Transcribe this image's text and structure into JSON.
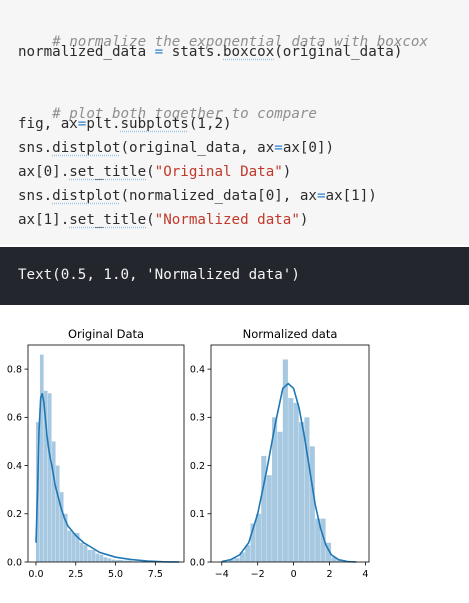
{
  "code": {
    "line1": "# normalize the exponential data with boxcox",
    "line2": {
      "a": "normalized_data ",
      "eq": "=",
      "b": " stats.",
      "c": "boxcox",
      "d": "(original_data)"
    },
    "line4": "# plot both together to compare",
    "line5": {
      "a": "fig, ax",
      "eq": "=",
      "b": "plt.",
      "c": "subplots",
      "d": "(1,2)"
    },
    "line6": {
      "a": "sns.",
      "b": "distplot",
      "c": "(original_data, ax",
      "eq": "=",
      "d": "ax[0])"
    },
    "line7": {
      "a": "ax[0].",
      "b": "set_title",
      "c": "(",
      "s": "\"Original Data\"",
      "d": ")"
    },
    "line8": {
      "a": "sns.",
      "b": "distplot",
      "c": "(normalized_data[0], ax",
      "eq": "=",
      "d": "ax[1])"
    },
    "line9": {
      "a": "ax[1].",
      "b": "set_title",
      "c": "(",
      "s": "\"Normalized data\"",
      "d": ")"
    }
  },
  "output": {
    "text": "Text(0.5, 1.0, 'Normalized data')"
  },
  "colors": {
    "hist": "#a6c8e0",
    "kde": "#1f77b4",
    "code_bg": "#f6f6f6",
    "output_bg": "#23262d"
  },
  "chart_data": [
    {
      "type": "bar",
      "title": "Original Data",
      "xlim": [
        -0.5,
        9.3
      ],
      "ylim": [
        0,
        0.9
      ],
      "xticks": [
        "0.0",
        "2.5",
        "5.0",
        "7.5"
      ],
      "xtick_values": [
        0,
        2.5,
        5,
        7.5
      ],
      "yticks": [
        "0.0",
        "0.2",
        "0.4",
        "0.6",
        "0.8"
      ],
      "ytick_values": [
        0,
        0.2,
        0.4,
        0.6,
        0.8
      ],
      "bins": [
        {
          "x0": 0.0,
          "x1": 0.25,
          "y": 0.58
        },
        {
          "x0": 0.25,
          "x1": 0.5,
          "y": 0.86
        },
        {
          "x0": 0.5,
          "x1": 0.75,
          "y": 0.71
        },
        {
          "x0": 0.75,
          "x1": 1.0,
          "y": 0.7
        },
        {
          "x0": 1.0,
          "x1": 1.25,
          "y": 0.5
        },
        {
          "x0": 1.25,
          "x1": 1.5,
          "y": 0.4
        },
        {
          "x0": 1.5,
          "x1": 1.75,
          "y": 0.29
        },
        {
          "x0": 1.75,
          "x1": 2.0,
          "y": 0.2
        },
        {
          "x0": 2.0,
          "x1": 2.25,
          "y": 0.13
        },
        {
          "x0": 2.25,
          "x1": 2.5,
          "y": 0.12
        },
        {
          "x0": 2.5,
          "x1": 2.75,
          "y": 0.12
        },
        {
          "x0": 2.75,
          "x1": 3.0,
          "y": 0.08
        },
        {
          "x0": 3.0,
          "x1": 3.25,
          "y": 0.07
        },
        {
          "x0": 3.25,
          "x1": 3.5,
          "y": 0.05
        },
        {
          "x0": 3.5,
          "x1": 3.75,
          "y": 0.05
        },
        {
          "x0": 3.75,
          "x1": 4.0,
          "y": 0.035
        },
        {
          "x0": 4.0,
          "x1": 4.25,
          "y": 0.03
        },
        {
          "x0": 4.25,
          "x1": 4.5,
          "y": 0.02
        },
        {
          "x0": 4.5,
          "x1": 4.75,
          "y": 0.015
        },
        {
          "x0": 4.75,
          "x1": 5.0,
          "y": 0.01
        },
        {
          "x0": 5.0,
          "x1": 5.5,
          "y": 0.008
        },
        {
          "x0": 5.5,
          "x1": 6.0,
          "y": 0.006
        },
        {
          "x0": 6.0,
          "x1": 7.0,
          "y": 0.003
        },
        {
          "x0": 7.0,
          "x1": 8.5,
          "y": 0.002
        }
      ],
      "kde": {
        "x": [
          0.0,
          0.1,
          0.2,
          0.3,
          0.4,
          0.5,
          0.6,
          0.7,
          0.8,
          0.9,
          1.0,
          1.2,
          1.4,
          1.6,
          1.8,
          2.0,
          2.5,
          3.0,
          3.5,
          4.0,
          4.5,
          5.0,
          6.0,
          7.0,
          8.0,
          9.0
        ],
        "y": [
          0.08,
          0.3,
          0.55,
          0.68,
          0.7,
          0.66,
          0.59,
          0.52,
          0.47,
          0.43,
          0.4,
          0.32,
          0.27,
          0.22,
          0.18,
          0.15,
          0.11,
          0.08,
          0.06,
          0.04,
          0.03,
          0.02,
          0.01,
          0.004,
          0.001,
          0.0
        ]
      }
    },
    {
      "type": "bar",
      "title": "Normalized data",
      "xlim": [
        -4.6,
        4.2
      ],
      "ylim": [
        0,
        0.45
      ],
      "xticks": [
        "−4",
        "−2",
        "0",
        "2",
        "4"
      ],
      "xtick_values": [
        -4,
        -2,
        0,
        2,
        4
      ],
      "yticks": [
        "0.0",
        "0.1",
        "0.2",
        "0.3",
        "0.4"
      ],
      "ytick_values": [
        0,
        0.1,
        0.2,
        0.3,
        0.4
      ],
      "bins": [
        {
          "x0": -3.6,
          "x1": -3.3,
          "y": 0.005
        },
        {
          "x0": -3.3,
          "x1": -3.0,
          "y": 0.008
        },
        {
          "x0": -3.0,
          "x1": -2.7,
          "y": 0.02
        },
        {
          "x0": -2.7,
          "x1": -2.4,
          "y": 0.035
        },
        {
          "x0": -2.4,
          "x1": -2.1,
          "y": 0.08
        },
        {
          "x0": -2.1,
          "x1": -1.8,
          "y": 0.1
        },
        {
          "x0": -1.8,
          "x1": -1.5,
          "y": 0.22
        },
        {
          "x0": -1.5,
          "x1": -1.2,
          "y": 0.18
        },
        {
          "x0": -1.2,
          "x1": -0.9,
          "y": 0.3
        },
        {
          "x0": -0.9,
          "x1": -0.6,
          "y": 0.27
        },
        {
          "x0": -0.6,
          "x1": -0.3,
          "y": 0.42
        },
        {
          "x0": -0.3,
          "x1": 0.0,
          "y": 0.34
        },
        {
          "x0": 0.0,
          "x1": 0.3,
          "y": 0.33
        },
        {
          "x0": 0.3,
          "x1": 0.6,
          "y": 0.29
        },
        {
          "x0": 0.6,
          "x1": 0.9,
          "y": 0.3
        },
        {
          "x0": 0.9,
          "x1": 1.2,
          "y": 0.24
        },
        {
          "x0": 1.2,
          "x1": 1.5,
          "y": 0.09
        },
        {
          "x0": 1.5,
          "x1": 1.8,
          "y": 0.09
        },
        {
          "x0": 1.8,
          "x1": 2.1,
          "y": 0.04
        },
        {
          "x0": 2.1,
          "x1": 2.4,
          "y": 0.01
        },
        {
          "x0": 2.4,
          "x1": 2.7,
          "y": 0.005
        }
      ],
      "kde": {
        "x": [
          -4.0,
          -3.5,
          -3.0,
          -2.5,
          -2.0,
          -1.5,
          -1.0,
          -0.6,
          -0.3,
          0.0,
          0.3,
          0.6,
          0.9,
          1.2,
          1.5,
          1.8,
          2.1,
          2.5,
          3.0,
          3.5
        ],
        "y": [
          0.001,
          0.005,
          0.015,
          0.04,
          0.1,
          0.19,
          0.29,
          0.36,
          0.37,
          0.36,
          0.32,
          0.26,
          0.19,
          0.12,
          0.07,
          0.035,
          0.015,
          0.005,
          0.001,
          0.0
        ]
      }
    }
  ]
}
